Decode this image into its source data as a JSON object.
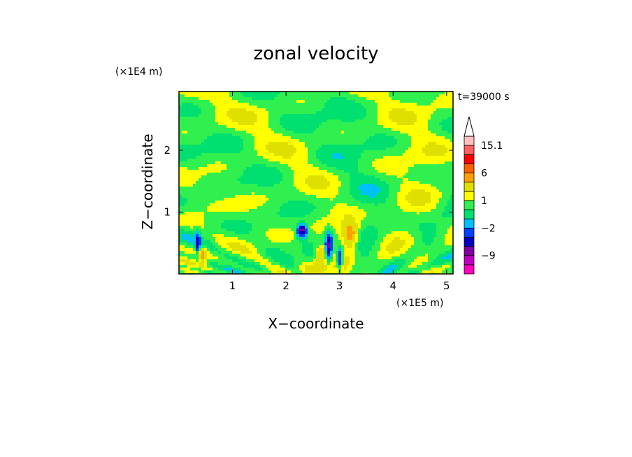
{
  "chart_data": {
    "type": "heatmap",
    "title": "zonal velocity",
    "xlabel": "X−coordinate",
    "ylabel": "Z−coordinate",
    "x_unit": "(×1E5 m)",
    "y_unit": "(×1E4 m)",
    "time_label": "t=39000 s",
    "xlim": [
      0.0,
      5.12
    ],
    "ylim": [
      0.0,
      2.95
    ],
    "x_ticks": [
      1,
      2,
      3,
      4,
      5
    ],
    "y_ticks": [
      1,
      2
    ],
    "x_tick_labels": [
      "1",
      "2",
      "3",
      "4",
      "5"
    ],
    "y_tick_labels": [
      "1",
      "2"
    ],
    "colorbar": {
      "levels": [
        -15.1,
        -12,
        -9,
        -6,
        -4,
        -2,
        -1,
        0,
        1,
        2,
        4,
        6,
        9,
        12,
        15.1
      ],
      "colors": [
        "#ff00c0",
        "#c000c0",
        "#8000a0",
        "#0000c0",
        "#0040ff",
        "#00c0ff",
        "#00e070",
        "#30f050",
        "#ffff00",
        "#e0e000",
        "#ffa000",
        "#ff6000",
        "#ff0000",
        "#ff6060",
        "#ffc0c0"
      ],
      "tick_labels": [
        "15.1",
        "6",
        "1",
        "−2",
        "−9"
      ],
      "tick_values": [
        15.1,
        6,
        1,
        -2,
        -9
      ],
      "extend": "max"
    },
    "field_description_values": {
      "background": [
        0,
        1,
        2
      ],
      "negative_cores_x": [
        0.35,
        2.3,
        2.7,
        3.0
      ],
      "positive_cores_x": [
        2.6,
        3.2
      ]
    }
  }
}
